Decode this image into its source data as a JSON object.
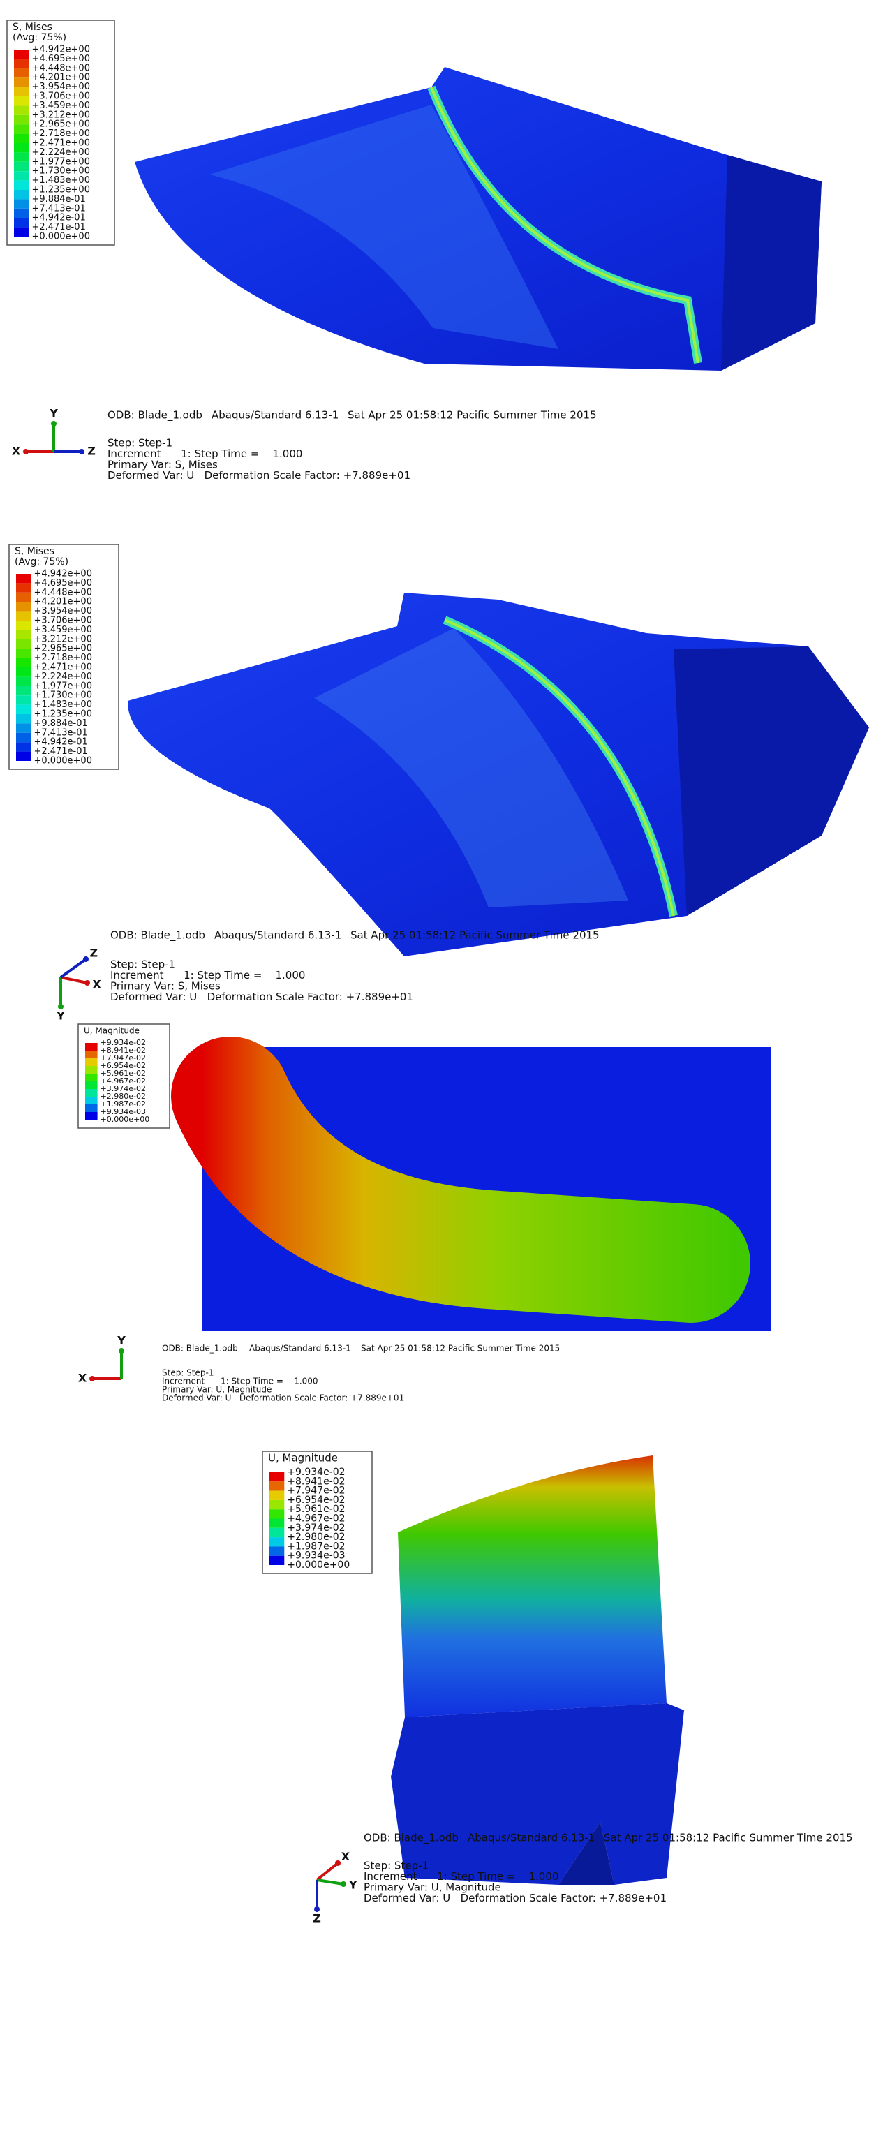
{
  "panels": [
    {
      "legend": {
        "title": "S, Mises",
        "subtitle": "(Avg: 75%)",
        "values": [
          "+4.942e+00",
          "+4.695e+00",
          "+4.448e+00",
          "+4.201e+00",
          "+3.954e+00",
          "+3.706e+00",
          "+3.459e+00",
          "+3.212e+00",
          "+2.965e+00",
          "+2.718e+00",
          "+2.471e+00",
          "+2.224e+00",
          "+1.977e+00",
          "+1.730e+00",
          "+1.483e+00",
          "+1.235e+00",
          "+9.884e-01",
          "+7.413e-01",
          "+4.942e-01",
          "+2.471e-01",
          "+0.000e+00"
        ]
      },
      "info": {
        "odb": "ODB: Blade_1.odb",
        "solver": "Abaqus/Standard 6.13-1",
        "date": "Sat Apr 25 01:58:12 Pacific Summer Time 2015",
        "step": "Step: Step-1",
        "increment": "Increment      1: Step Time =    1.000",
        "primary": "Primary Var: S, Mises",
        "deformed": "Deformed Var: U   Deformation Scale Factor: +7.889e+01"
      },
      "triad": [
        "X",
        "Y",
        "Z"
      ]
    },
    {
      "legend": {
        "title": "S, Mises",
        "subtitle": "(Avg: 75%)",
        "values": [
          "+4.942e+00",
          "+4.695e+00",
          "+4.448e+00",
          "+4.201e+00",
          "+3.954e+00",
          "+3.706e+00",
          "+3.459e+00",
          "+3.212e+00",
          "+2.965e+00",
          "+2.718e+00",
          "+2.471e+00",
          "+2.224e+00",
          "+1.977e+00",
          "+1.730e+00",
          "+1.483e+00",
          "+1.235e+00",
          "+9.884e-01",
          "+7.413e-01",
          "+4.942e-01",
          "+2.471e-01",
          "+0.000e+00"
        ]
      },
      "info": {
        "odb": "ODB: Blade_1.odb",
        "solver": "Abaqus/Standard 6.13-1",
        "date": "Sat Apr 25 01:58:12 Pacific Summer Time 2015",
        "step": "Step: Step-1",
        "increment": "Increment      1: Step Time =    1.000",
        "primary": "Primary Var: S, Mises",
        "deformed": "Deformed Var: U   Deformation Scale Factor: +7.889e+01"
      },
      "triad": [
        "X",
        "Y",
        "Z"
      ]
    },
    {
      "legend": {
        "title": "U, Magnitude",
        "values": [
          "+9.934e-02",
          "+8.941e-02",
          "+7.947e-02",
          "+6.954e-02",
          "+5.961e-02",
          "+4.967e-02",
          "+3.974e-02",
          "+2.980e-02",
          "+1.987e-02",
          "+9.934e-03",
          "+0.000e+00"
        ]
      },
      "info": {
        "odb": "ODB: Blade_1.odb",
        "solver": "Abaqus/Standard 6.13-1",
        "date": "Sat Apr 25 01:58:12 Pacific Summer Time 2015",
        "step": "Step: Step-1",
        "increment": "Increment      1: Step Time =    1.000",
        "primary": "Primary Var: U, Magnitude",
        "deformed": "Deformed Var: U   Deformation Scale Factor: +7.889e+01"
      },
      "triad": [
        "X",
        "Y"
      ]
    },
    {
      "legend": {
        "title": "U, Magnitude",
        "values": [
          "+9.934e-02",
          "+8.941e-02",
          "+7.947e-02",
          "+6.954e-02",
          "+5.961e-02",
          "+4.967e-02",
          "+3.974e-02",
          "+2.980e-02",
          "+1.987e-02",
          "+9.934e-03",
          "+0.000e+00"
        ]
      },
      "info": {
        "odb": "ODB: Blade_1.odb",
        "solver": "Abaqus/Standard 6.13-1",
        "date": "Sat Apr 25 01:58:12 Pacific Summer Time 2015",
        "step": "Step: Step-1",
        "increment": "Increment      1: Step Time =    1.000",
        "primary": "Primary Var: U, Magnitude",
        "deformed": "Deformed Var: U   Deformation Scale Factor: +7.889e+01"
      },
      "triad": [
        "X",
        "Y",
        "Z"
      ]
    }
  ]
}
